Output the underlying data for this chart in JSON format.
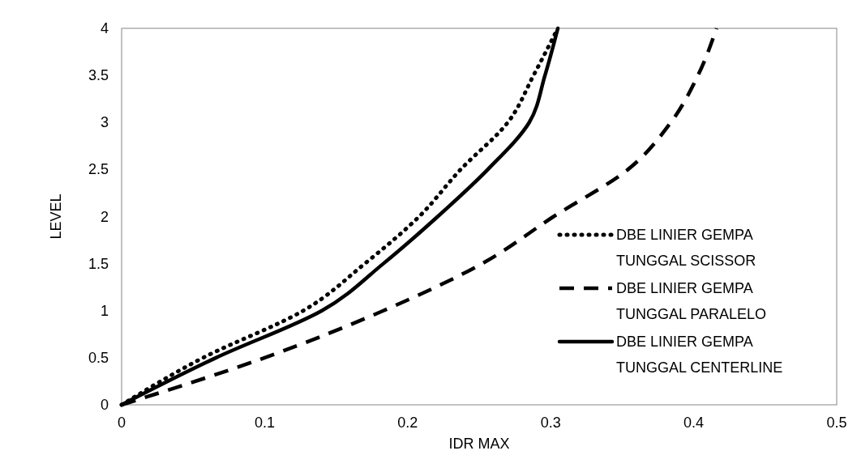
{
  "chart_data": {
    "type": "line",
    "xlabel": "IDR MAX",
    "ylabel": "LEVEL",
    "xlim": [
      0,
      0.5
    ],
    "xticks": [
      0,
      0.1,
      0.2,
      0.3,
      0.4,
      0.5
    ],
    "ylim": [
      0,
      4
    ],
    "yticks": [
      0,
      0.5,
      1,
      1.5,
      2,
      2.5,
      3,
      3.5,
      4
    ],
    "grid": false,
    "legend": "right",
    "marker": "none",
    "series": [
      {
        "name": "DBE LINIER GEMPA TUNGGAL SCISSOR",
        "color": "#000000",
        "line_style": "dotted",
        "x": [
          0,
          0.057,
          0.127,
          0.17,
          0.208,
          0.237,
          0.27,
          0.288,
          0.305
        ],
        "values": [
          0,
          0.5,
          1,
          1.5,
          2,
          2.5,
          3,
          3.5,
          4
        ]
      },
      {
        "name": "DBE LINIER GEMPA TUNGGAL PARALELO",
        "color": "#000000",
        "line_style": "dashed",
        "x": [
          0,
          0.1,
          0.183,
          0.252,
          0.302,
          0.354,
          0.384,
          0.403,
          0.416
        ],
        "values": [
          0,
          0.5,
          1,
          1.5,
          2,
          2.5,
          3,
          3.5,
          4
        ]
      },
      {
        "name": "DBE LINIER GEMPA TUNGGAL CENTERLINE",
        "color": "#000000",
        "line_style": "solid",
        "x": [
          0,
          0.066,
          0.14,
          0.183,
          0.221,
          0.256,
          0.285,
          0.296,
          0.305
        ],
        "values": [
          0,
          0.5,
          1,
          1.5,
          2,
          2.5,
          3,
          3.5,
          4
        ]
      }
    ]
  }
}
